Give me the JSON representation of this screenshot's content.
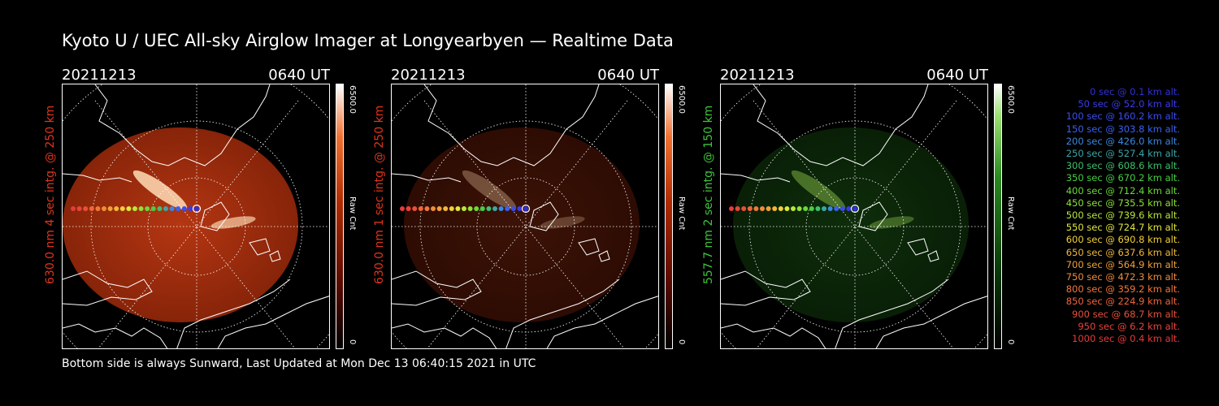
{
  "title": "Kyoto U / UEC All-sky Airglow Imager at Longyearbyen — Realtime Data",
  "footer": "Bottom side is always Sunward, Last Updated at Mon Dec 13 06:40:15 2021 in UTC",
  "colors": {
    "red_channel": "#e0341a",
    "green_channel": "#3ec43a",
    "background": "#000000",
    "text": "#ffffff"
  },
  "panels": [
    {
      "date": "20211213",
      "time": "0640 UT",
      "ylabel": "630.0 nm 4 sec intg. @ 250 km",
      "ylabel_color": "#e0341a",
      "colorbar_max": "6500.0",
      "colorbar_min": "0",
      "colorbar_label": "Raw Cnt",
      "colormap": "red",
      "intensity": 0.9
    },
    {
      "date": "20211213",
      "time": "0640 UT",
      "ylabel": "630.0 nm 1 sec intg. @ 250 km",
      "ylabel_color": "#e0341a",
      "colorbar_max": "6500.0",
      "colorbar_min": "0",
      "colorbar_label": "Raw Cnt",
      "colormap": "red",
      "intensity": 0.3
    },
    {
      "date": "20211213",
      "time": "0640 UT",
      "ylabel": "557.7 nm 2 sec intg. @ 150 km",
      "ylabel_color": "#3ec43a",
      "colorbar_max": "6500.0",
      "colorbar_min": "0",
      "colorbar_label": "Raw Cnt",
      "colormap": "green",
      "intensity": 0.35
    }
  ],
  "legend": [
    {
      "time": "0 sec",
      "alt": "0.1 km alt.",
      "color": "#3030d8"
    },
    {
      "time": "50 sec",
      "alt": "52.0 km alt.",
      "color": "#3a3ae8"
    },
    {
      "time": "100 sec",
      "alt": "160.2 km alt.",
      "color": "#3a4cf0"
    },
    {
      "time": "150 sec",
      "alt": "303.8 km alt.",
      "color": "#3a60f0"
    },
    {
      "time": "200 sec",
      "alt": "426.0 km alt.",
      "color": "#3a88e0"
    },
    {
      "time": "250 sec",
      "alt": "527.4 km alt.",
      "color": "#3ca6a6"
    },
    {
      "time": "300 sec",
      "alt": "608.6 km alt.",
      "color": "#3cc06c"
    },
    {
      "time": "350 sec",
      "alt": "670.2 km alt.",
      "color": "#46d040"
    },
    {
      "time": "400 sec",
      "alt": "712.4 km alt.",
      "color": "#6ad83a"
    },
    {
      "time": "450 sec",
      "alt": "735.5 km alt.",
      "color": "#8ee03a"
    },
    {
      "time": "500 sec",
      "alt": "739.6 km alt.",
      "color": "#b8e83a"
    },
    {
      "time": "550 sec",
      "alt": "724.7 km alt.",
      "color": "#e0e83a"
    },
    {
      "time": "600 sec",
      "alt": "690.8 km alt.",
      "color": "#f0d03a"
    },
    {
      "time": "650 sec",
      "alt": "637.6 km alt.",
      "color": "#f0b83a"
    },
    {
      "time": "700 sec",
      "alt": "564.9 km alt.",
      "color": "#f0a03a"
    },
    {
      "time": "750 sec",
      "alt": "472.3 km alt.",
      "color": "#f08c3a"
    },
    {
      "time": "800 sec",
      "alt": "359.2 km alt.",
      "color": "#f0783a"
    },
    {
      "time": "850 sec",
      "alt": "224.9 km alt.",
      "color": "#f0643a"
    },
    {
      "time": "900 sec",
      "alt": "68.7 km alt.",
      "color": "#e8503a"
    },
    {
      "time": "950 sec",
      "alt": "6.2 km alt.",
      "color": "#e8443a"
    },
    {
      "time": "1000 sec",
      "alt": "0.4 km alt.",
      "color": "#e83a3a"
    }
  ]
}
